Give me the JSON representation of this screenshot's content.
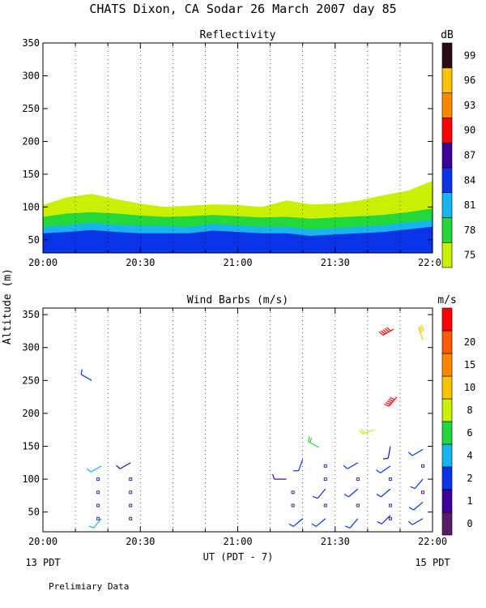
{
  "title": "CHATS Dixon, CA   Sodar   26 March 2007   day  85",
  "ylabel": "Altitude (m)",
  "xlabel": "UT  (PDT - 7)",
  "x_left_note": "13 PDT",
  "x_right_note": "15 PDT",
  "footnote": "Prelimiary Data",
  "chart_data": [
    {
      "type": "heatmap",
      "title": "Reflectivity",
      "x_ticks": [
        "20:00",
        "20:30",
        "21:00",
        "21:30",
        "22:00"
      ],
      "x_range": [
        "20:00",
        "22:00"
      ],
      "y_ticks": [
        50,
        100,
        150,
        200,
        250,
        300,
        350
      ],
      "ylim": [
        30,
        350
      ],
      "colorbar": {
        "unit": "dB",
        "levels": [
          75,
          78,
          81,
          84,
          87,
          90,
          93,
          96,
          99
        ],
        "colors": [
          "#c8f000",
          "#22d83a",
          "#18b4ee",
          "#0a32e6",
          "#3e0096",
          "#ff0000",
          "#ff8a00",
          "#ffc400",
          "#2a0a1a"
        ]
      },
      "layers": [
        {
          "level": 84,
          "top": [
            60,
            62,
            65,
            62,
            60,
            60,
            60,
            64,
            62,
            60,
            60,
            56,
            58,
            60,
            62,
            66,
            70
          ]
        },
        {
          "level": 81,
          "top": [
            70,
            72,
            76,
            73,
            72,
            71,
            70,
            74,
            72,
            70,
            70,
            66,
            68,
            70,
            72,
            77,
            80
          ]
        },
        {
          "level": 78,
          "top": [
            85,
            90,
            92,
            90,
            87,
            85,
            86,
            88,
            86,
            84,
            85,
            82,
            84,
            86,
            88,
            92,
            98
          ]
        },
        {
          "level": 75,
          "top": [
            103,
            115,
            120,
            112,
            105,
            100,
            102,
            104,
            103,
            100,
            110,
            104,
            105,
            110,
            118,
            125,
            140
          ]
        }
      ]
    },
    {
      "type": "scatter",
      "title": "Wind Barbs (m/s)",
      "x_ticks": [
        "20:00",
        "20:30",
        "21:00",
        "21:30",
        "22:00"
      ],
      "x_range": [
        "20:00",
        "22:00"
      ],
      "y_ticks": [
        50,
        100,
        150,
        200,
        250,
        300,
        350
      ],
      "ylim": [
        20,
        360
      ],
      "colorbar": {
        "unit": "m/s",
        "levels": [
          0,
          1,
          2,
          4,
          6,
          8,
          10,
          15,
          20
        ],
        "colors": [
          "#5a1a6a",
          "#3e0096",
          "#0a32e6",
          "#18b4ee",
          "#22d83a",
          "#c8f000",
          "#ffc400",
          "#ff8a00",
          "#ff5a00",
          "#ff0000"
        ]
      },
      "barbs": [
        {
          "t": "20:15",
          "alt": 250,
          "speed": 3,
          "dir": 300
        },
        {
          "t": "20:18",
          "alt": 120,
          "speed": 5,
          "dir": 240
        },
        {
          "t": "20:18",
          "alt": 40,
          "speed": 5,
          "dir": 220
        },
        {
          "t": "20:27",
          "alt": 125,
          "speed": 1,
          "dir": 240
        },
        {
          "t": "21:15",
          "alt": 100,
          "speed": 1,
          "dir": 270
        },
        {
          "t": "21:20",
          "alt": 130,
          "speed": 3,
          "dir": 200
        },
        {
          "t": "21:20",
          "alt": 40,
          "speed": 3,
          "dir": 230
        },
        {
          "t": "21:25",
          "alt": 148,
          "speed": 7,
          "dir": 300
        },
        {
          "t": "21:27",
          "alt": 85,
          "speed": 3,
          "dir": 220
        },
        {
          "t": "21:27",
          "alt": 40,
          "speed": 3,
          "dir": 230
        },
        {
          "t": "21:37",
          "alt": 125,
          "speed": 3,
          "dir": 240
        },
        {
          "t": "21:37",
          "alt": 85,
          "speed": 3,
          "dir": 230
        },
        {
          "t": "21:37",
          "alt": 40,
          "speed": 3,
          "dir": 220
        },
        {
          "t": "21:42",
          "alt": 175,
          "speed": 9,
          "dir": 250
        },
        {
          "t": "21:47",
          "alt": 150,
          "speed": 1,
          "dir": 190
        },
        {
          "t": "21:47",
          "alt": 120,
          "speed": 3,
          "dir": 235
        },
        {
          "t": "21:47",
          "alt": 85,
          "speed": 3,
          "dir": 230
        },
        {
          "t": "21:47",
          "alt": 45,
          "speed": 3,
          "dir": 225
        },
        {
          "t": "21:48",
          "alt": 328,
          "speed": 20,
          "dir": 240
        },
        {
          "t": "21:49",
          "alt": 225,
          "speed": 20,
          "dir": 220
        },
        {
          "t": "21:57",
          "alt": 312,
          "speed": 10,
          "dir": 340
        },
        {
          "t": "21:57",
          "alt": 145,
          "speed": 3,
          "dir": 240
        },
        {
          "t": "21:57",
          "alt": 100,
          "speed": 3,
          "dir": 220
        },
        {
          "t": "21:57",
          "alt": 65,
          "speed": 3,
          "dir": 230
        },
        {
          "t": "21:57",
          "alt": 40,
          "speed": 3,
          "dir": 240
        }
      ],
      "calm_points": [
        {
          "t": "20:17",
          "alts": [
            40,
            60,
            80,
            100
          ]
        },
        {
          "t": "20:27",
          "alts": [
            40,
            60,
            80,
            100
          ]
        },
        {
          "t": "21:17",
          "alts": [
            60,
            80
          ]
        },
        {
          "t": "21:27",
          "alts": [
            60,
            100,
            120
          ]
        },
        {
          "t": "21:37",
          "alts": [
            60,
            100
          ]
        },
        {
          "t": "21:47",
          "alts": [
            40,
            60,
            100
          ]
        },
        {
          "t": "21:57",
          "alts": [
            80,
            120
          ]
        }
      ]
    }
  ]
}
